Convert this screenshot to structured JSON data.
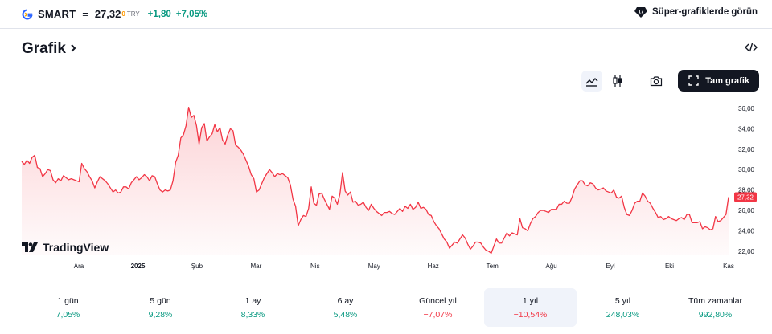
{
  "ticker": {
    "symbol": "SMART",
    "eq": "=",
    "price": "27,32",
    "price_sup": "0",
    "currency": "TRY",
    "change_abs": "+1,80",
    "change_pct": "+7,05%"
  },
  "promo": {
    "label": "Süper-grafiklerde görün"
  },
  "header": {
    "title": "Grafik"
  },
  "toolbar": {
    "fullscreen_label": "Tam grafik"
  },
  "brand": {
    "name": "TradingView"
  },
  "colors": {
    "line": "#f23645",
    "up": "#089981",
    "down": "#f23645",
    "last_price": "#f23645"
  },
  "chart_data": {
    "type": "area",
    "series": [
      {
        "values": [
          30.8,
          30.5,
          30.9,
          30.6,
          31.2,
          31.4,
          30.2,
          30.1,
          29.3,
          29.6,
          30.0,
          29.9,
          29.0,
          28.7,
          29.1,
          28.9,
          29.4,
          29.2,
          29.0,
          29.1,
          29.0,
          28.9,
          28.8,
          30.6,
          30.1,
          29.8,
          29.3,
          28.9,
          28.2,
          28.8,
          29.3,
          29.1,
          28.9,
          28.6,
          28.2,
          27.8,
          28.0,
          27.7,
          27.8,
          28.3,
          28.3,
          28.1,
          28.7,
          29.0,
          29.3,
          29.0,
          29.2,
          29.5,
          29.3,
          28.9,
          29.4,
          29.3,
          28.6,
          28.0,
          27.8,
          28.0,
          27.9,
          28.0,
          28.9,
          30.7,
          31.4,
          33.1,
          33.4,
          34.3,
          36.1,
          35.1,
          35.3,
          34.3,
          32.5,
          34.1,
          34.5,
          32.8,
          33.2,
          33.5,
          34.4,
          33.7,
          34.1,
          32.9,
          32.5,
          33.4,
          34.0,
          33.8,
          32.4,
          32.2,
          31.9,
          31.5,
          30.9,
          30.3,
          29.5,
          29.1,
          27.8,
          28.0,
          28.6,
          29.2,
          29.6,
          30.0,
          29.7,
          29.3,
          29.6,
          29.5,
          29.6,
          29.4,
          29.2,
          28.5,
          27.1,
          26.4,
          24.5,
          25.1,
          25.5,
          25.4,
          26.2,
          28.3,
          26.7,
          26.5,
          27.6,
          27.7,
          27.1,
          26.6,
          26.1,
          27.4,
          27.2,
          26.6,
          27.6,
          29.7,
          27.9,
          27.5,
          27.8,
          26.8,
          26.9,
          26.5,
          26.6,
          26.8,
          26.3,
          26.0,
          26.6,
          26.2,
          25.9,
          25.7,
          25.5,
          25.8,
          25.8,
          25.9,
          25.7,
          25.6,
          25.9,
          26.2,
          25.9,
          26.4,
          26.2,
          26.6,
          26.1,
          26.3,
          26.8,
          26.2,
          26.3,
          26.1,
          25.6,
          25.5,
          24.9,
          24.5,
          24.2,
          23.7,
          23.2,
          22.9,
          22.3,
          22.6,
          22.9,
          22.8,
          23.2,
          23.6,
          23.3,
          22.7,
          22.2,
          22.5,
          22.9,
          22.9,
          22.8,
          22.4,
          22.1,
          22.0,
          21.8,
          22.5,
          23.2,
          22.8,
          22.8,
          23.3,
          23.8,
          23.5,
          23.8,
          23.7,
          23.6,
          25.2,
          24.3,
          24.2,
          24.0,
          24.7,
          25.2,
          25.4,
          25.8,
          26.0,
          26.0,
          25.9,
          25.8,
          26.1,
          26.1,
          26.1,
          26.6,
          26.6,
          26.9,
          26.7,
          26.7,
          27.3,
          28.1,
          28.5,
          28.9,
          28.9,
          28.5,
          28.4,
          28.7,
          28.6,
          28.2,
          28.0,
          28.1,
          28.2,
          27.9,
          27.8,
          27.7,
          28.0,
          27.3,
          27.2,
          27.4,
          26.3,
          25.6,
          25.5,
          26.0,
          26.7,
          26.9,
          26.9,
          27.7,
          27.4,
          26.9,
          26.7,
          26.2,
          25.8,
          25.3,
          25.4,
          25.1,
          25.2,
          25.4,
          25.2,
          25.1,
          25.0,
          25.2,
          25.3,
          25.1,
          25.6,
          25.6,
          24.8,
          24.8,
          24.8,
          24.9,
          24.2,
          24.4,
          24.3,
          24.1,
          24.2,
          25.4,
          24.9,
          25.0,
          25.3,
          25.6,
          27.3
        ]
      }
    ],
    "ylim": [
      21.6,
      36.7
    ],
    "yticks": [
      "36,00",
      "34,00",
      "32,00",
      "30,00",
      "28,00",
      "26,00",
      "24,00",
      "22,00"
    ],
    "ytick_values": [
      36,
      34,
      32,
      30,
      28,
      26,
      24,
      22
    ],
    "xticks": [
      "Ara",
      "2025",
      "Şub",
      "Mar",
      "Nis",
      "May",
      "Haz",
      "Tem",
      "Ağu",
      "Eyl",
      "Eki",
      "Kas"
    ],
    "last_value_label": "27,32",
    "grid": false
  },
  "ranges": [
    {
      "label": "1 gün",
      "value": "7,05%",
      "dir": "pos"
    },
    {
      "label": "5 gün",
      "value": "9,28%",
      "dir": "pos"
    },
    {
      "label": "1 ay",
      "value": "8,33%",
      "dir": "pos"
    },
    {
      "label": "6 ay",
      "value": "5,48%",
      "dir": "pos"
    },
    {
      "label": "Güncel yıl",
      "value": "−7,07%",
      "dir": "neg"
    },
    {
      "label": "1 yıl",
      "value": "−10,54%",
      "dir": "neg",
      "selected": true
    },
    {
      "label": "5 yıl",
      "value": "248,03%",
      "dir": "pos"
    },
    {
      "label": "Tüm zamanlar",
      "value": "992,80%",
      "dir": "pos"
    }
  ]
}
